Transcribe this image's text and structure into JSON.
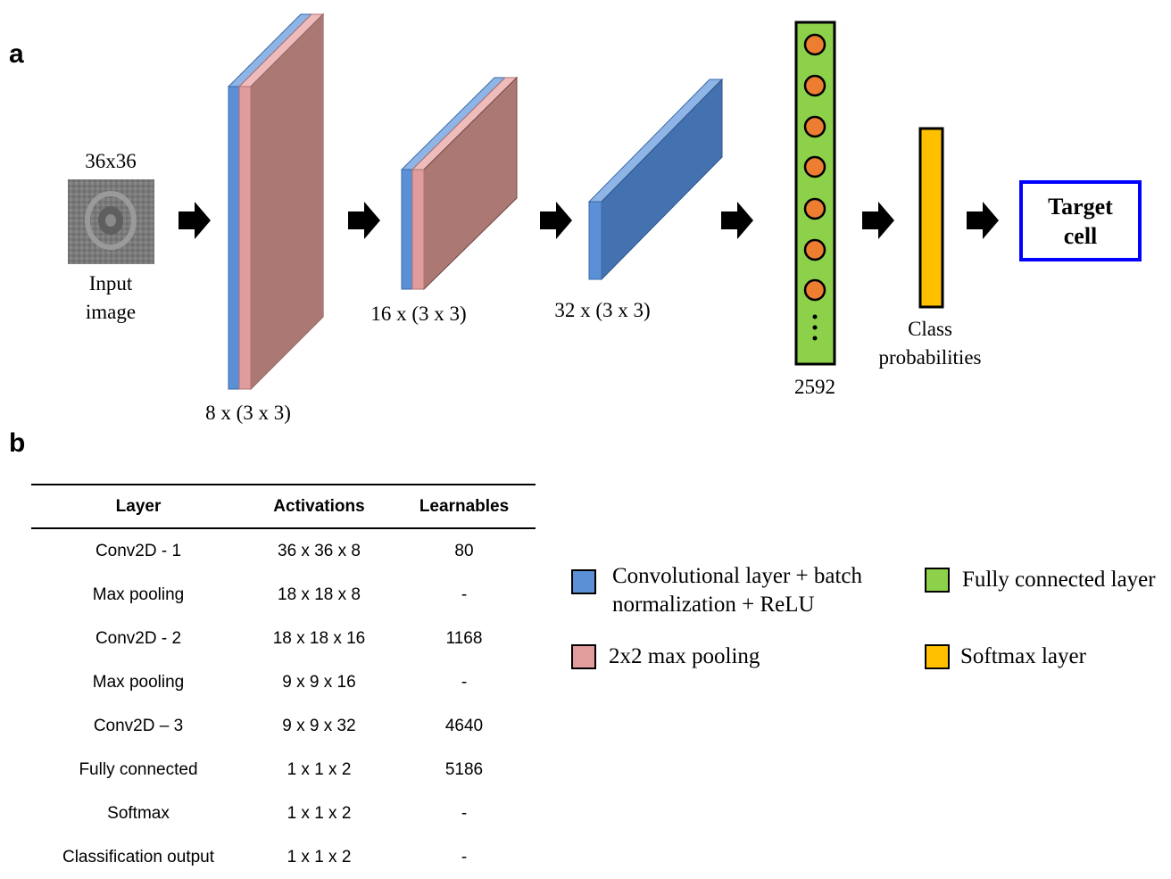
{
  "panels": {
    "a": "a",
    "b": "b"
  },
  "architecture": {
    "input_size": "36x36",
    "input_label_line1": "Input",
    "input_label_line2": "image",
    "conv1_label": "8 x (3 x 3)",
    "conv2_label": "16 x (3 x 3)",
    "conv3_label": "32 x (3 x 3)",
    "fc_label": "2592",
    "softmax_label_line1": "Class",
    "softmax_label_line2": "probabilities",
    "output_line1": "Target",
    "output_line2": "cell"
  },
  "colors": {
    "conv": "#5b8fd6",
    "conv_dark": "#4472b0",
    "pool": "#e19c9c",
    "pool_dark": "#ac7873",
    "fc": "#8dd04a",
    "fc_node": "#ed7d31",
    "softmax": "#ffc000",
    "output_border": "#0000ff"
  },
  "table": {
    "headers": [
      "Layer",
      "Activations",
      "Learnables"
    ],
    "rows": [
      [
        "Conv2D - 1",
        "36 x 36 x 8",
        "80"
      ],
      [
        "Max pooling",
        "18 x 18 x 8",
        "-"
      ],
      [
        "Conv2D - 2",
        "18 x 18 x 16",
        "1168"
      ],
      [
        "Max pooling",
        "9 x 9 x 16",
        "-"
      ],
      [
        "Conv2D – 3",
        "9 x 9 x 32",
        "4640"
      ],
      [
        "Fully connected",
        "1 x 1 x 2",
        "5186"
      ],
      [
        "Softmax",
        "1 x 1 x 2",
        "-"
      ],
      [
        "Classification output",
        "1 x 1 x 2",
        "-"
      ]
    ]
  },
  "legend": {
    "conv_line1": "Convolutional layer + batch",
    "conv_line2": "normalization + ReLU",
    "pool": "2x2 max pooling",
    "fc": "Fully connected layer",
    "softmax": "Softmax layer"
  }
}
